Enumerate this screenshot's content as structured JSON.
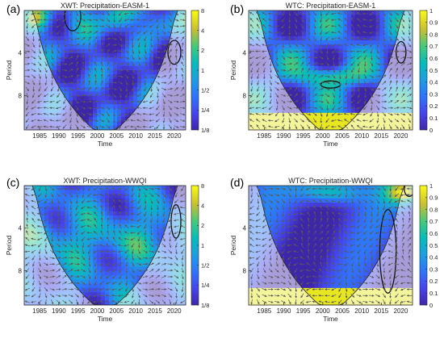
{
  "chart_data": [
    {
      "type": "heatmap",
      "panel_label": "(a)",
      "title": "XWT: Precipitation-EASM-1",
      "xlabel": "Time",
      "ylabel": "Period",
      "xlim": [
        1981,
        2023
      ],
      "ylim": [
        2,
        14
      ],
      "y_scale": "log2",
      "y_reversed": true,
      "xticks": [
        "1985",
        "1990",
        "1995",
        "2000",
        "2005",
        "2010",
        "2015",
        "2020"
      ],
      "yticks": [
        "4",
        "8"
      ],
      "colorbar": {
        "ticks": [
          "8",
          "4",
          "2",
          "1",
          "1/2",
          "1/4",
          "1/8"
        ],
        "range": [
          "1/8",
          "8"
        ],
        "scale": "log2"
      },
      "features": [
        "cone of influence",
        "phase arrows",
        "significance contours"
      ]
    },
    {
      "type": "heatmap",
      "panel_label": "(b)",
      "title": "WTC: Precipitation-EASM-1",
      "xlabel": "Time",
      "ylabel": "Period",
      "xlim": [
        1981,
        2023
      ],
      "ylim": [
        2,
        14
      ],
      "y_scale": "log2",
      "y_reversed": true,
      "xticks": [
        "1985",
        "1990",
        "1995",
        "2000",
        "2005",
        "2010",
        "2015",
        "2020"
      ],
      "yticks": [
        "4",
        "8"
      ],
      "colorbar": {
        "ticks": [
          "1",
          "0.9",
          "0.8",
          "0.7",
          "0.6",
          "0.5",
          "0.4",
          "0.3",
          "0.2",
          "0.1",
          "0"
        ],
        "range": [
          0,
          1
        ]
      },
      "features": [
        "cone of influence",
        "phase arrows",
        "significance contours"
      ]
    },
    {
      "type": "heatmap",
      "panel_label": "(c)",
      "title": "XWT: Precipitation-WWQI",
      "xlabel": "Time",
      "ylabel": "Period",
      "xlim": [
        1981,
        2023
      ],
      "ylim": [
        2,
        14
      ],
      "y_scale": "log2",
      "y_reversed": true,
      "xticks": [
        "1985",
        "1990",
        "1995",
        "2000",
        "2005",
        "2010",
        "2015",
        "2020"
      ],
      "yticks": [
        "4",
        "8"
      ],
      "colorbar": {
        "ticks": [
          "8",
          "4",
          "2",
          "1",
          "1/2",
          "1/4",
          "1/8"
        ],
        "range": [
          "1/8",
          "8"
        ],
        "scale": "log2"
      },
      "features": [
        "cone of influence",
        "phase arrows"
      ]
    },
    {
      "type": "heatmap",
      "panel_label": "(d)",
      "title": "WTC: Precipitation-WWQI",
      "xlabel": "Time",
      "ylabel": "Period",
      "xlim": [
        1981,
        2023
      ],
      "ylim": [
        2,
        14
      ],
      "y_scale": "log2",
      "y_reversed": true,
      "xticks": [
        "1985",
        "1990",
        "1995",
        "2000",
        "2005",
        "2010",
        "2015",
        "2020"
      ],
      "yticks": [
        "4",
        "8"
      ],
      "colorbar": {
        "ticks": [
          "1",
          "0.9",
          "0.8",
          "0.7",
          "0.6",
          "0.5",
          "0.4",
          "0.3",
          "0.2",
          "0.1",
          "0"
        ],
        "range": [
          0,
          1
        ]
      },
      "features": [
        "cone of influence",
        "phase arrows",
        "significance contours"
      ]
    }
  ]
}
